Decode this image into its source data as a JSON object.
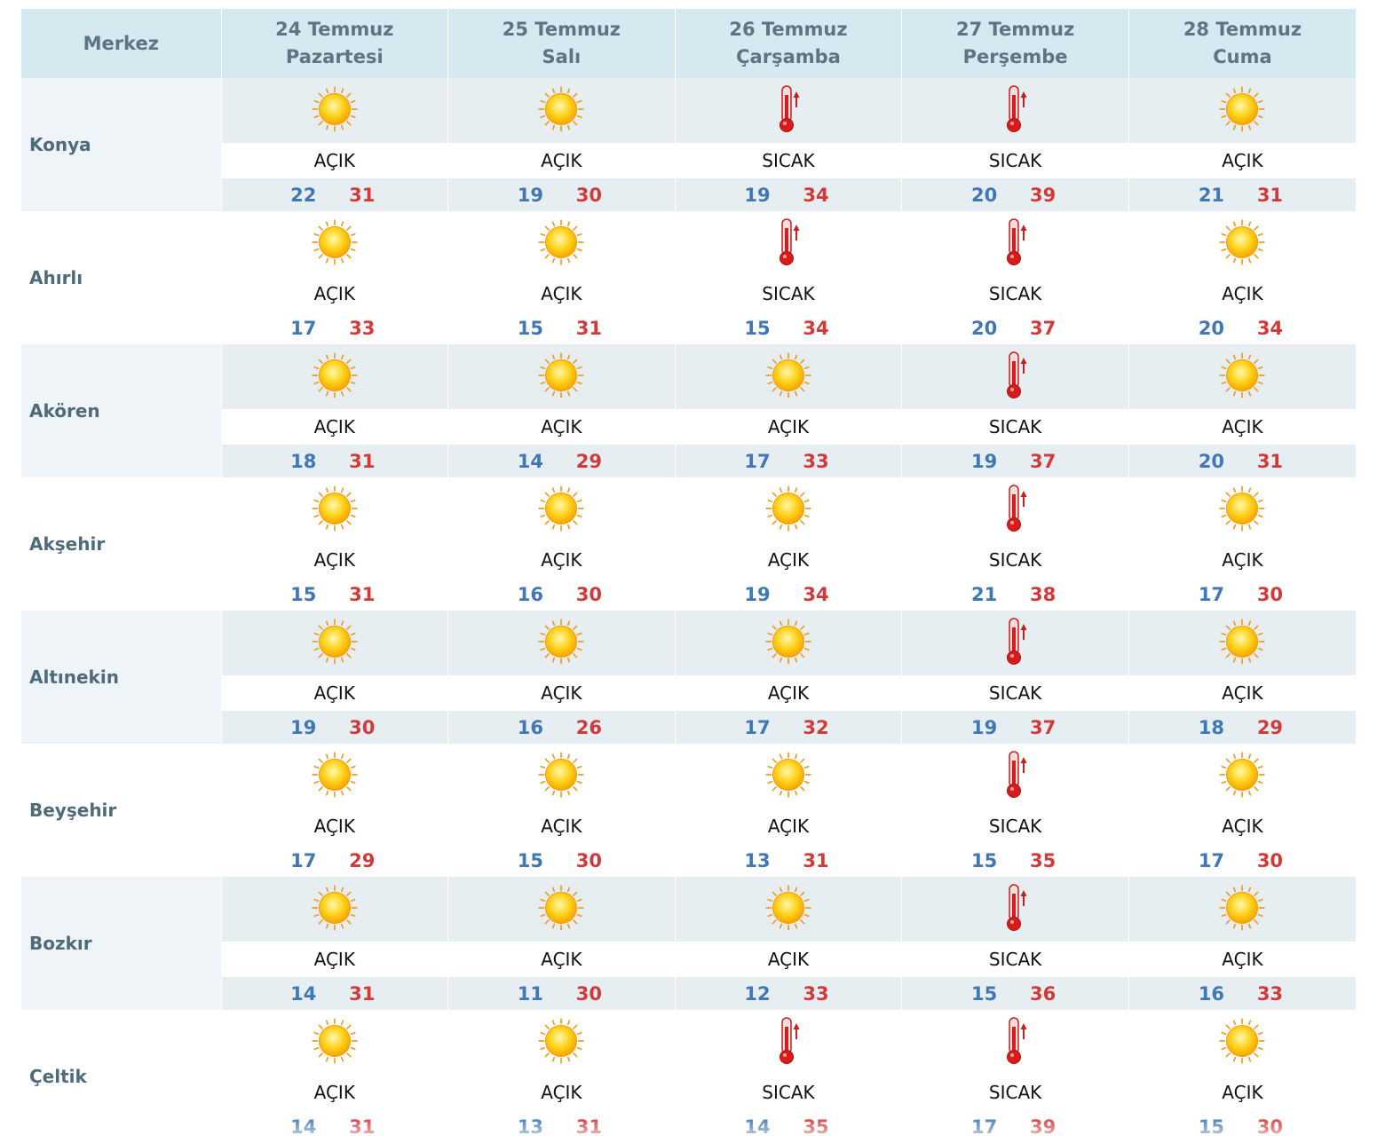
{
  "header": {
    "merkez": "Merkez",
    "days": [
      {
        "date": "24 Temmuz",
        "weekday": "Pazartesi"
      },
      {
        "date": "25 Temmuz",
        "weekday": "Salı"
      },
      {
        "date": "26 Temmuz",
        "weekday": "Çarşamba"
      },
      {
        "date": "27 Temmuz",
        "weekday": "Perşembe"
      },
      {
        "date": "28 Temmuz",
        "weekday": "Cuma"
      }
    ]
  },
  "colors": {
    "low": "#3f78b4",
    "high": "#d23a3a",
    "header_bg": "#d6e9f0"
  },
  "icons": {
    "AÇIK": "sun-icon",
    "SICAK": "thermometer-icon"
  },
  "cities": [
    {
      "name": "Konya",
      "forecast": [
        {
          "cond": "AÇIK",
          "low": "22",
          "high": "31"
        },
        {
          "cond": "AÇIK",
          "low": "19",
          "high": "30"
        },
        {
          "cond": "SICAK",
          "low": "19",
          "high": "34"
        },
        {
          "cond": "SICAK",
          "low": "20",
          "high": "39"
        },
        {
          "cond": "AÇIK",
          "low": "21",
          "high": "31"
        }
      ]
    },
    {
      "name": "Ahırlı",
      "forecast": [
        {
          "cond": "AÇIK",
          "low": "17",
          "high": "33"
        },
        {
          "cond": "AÇIK",
          "low": "15",
          "high": "31"
        },
        {
          "cond": "SICAK",
          "low": "15",
          "high": "34"
        },
        {
          "cond": "SICAK",
          "low": "20",
          "high": "37"
        },
        {
          "cond": "AÇIK",
          "low": "20",
          "high": "34"
        }
      ]
    },
    {
      "name": "Akören",
      "forecast": [
        {
          "cond": "AÇIK",
          "low": "18",
          "high": "31"
        },
        {
          "cond": "AÇIK",
          "low": "14",
          "high": "29"
        },
        {
          "cond": "AÇIK",
          "low": "17",
          "high": "33"
        },
        {
          "cond": "SICAK",
          "low": "19",
          "high": "37"
        },
        {
          "cond": "AÇIK",
          "low": "20",
          "high": "31"
        }
      ]
    },
    {
      "name": "Akşehir",
      "forecast": [
        {
          "cond": "AÇIK",
          "low": "15",
          "high": "31"
        },
        {
          "cond": "AÇIK",
          "low": "16",
          "high": "30"
        },
        {
          "cond": "AÇIK",
          "low": "19",
          "high": "34"
        },
        {
          "cond": "SICAK",
          "low": "21",
          "high": "38"
        },
        {
          "cond": "AÇIK",
          "low": "17",
          "high": "30"
        }
      ]
    },
    {
      "name": "Altınekin",
      "forecast": [
        {
          "cond": "AÇIK",
          "low": "19",
          "high": "30"
        },
        {
          "cond": "AÇIK",
          "low": "16",
          "high": "26"
        },
        {
          "cond": "AÇIK",
          "low": "17",
          "high": "32"
        },
        {
          "cond": "SICAK",
          "low": "19",
          "high": "37"
        },
        {
          "cond": "AÇIK",
          "low": "18",
          "high": "29"
        }
      ]
    },
    {
      "name": "Beyşehir",
      "forecast": [
        {
          "cond": "AÇIK",
          "low": "17",
          "high": "29"
        },
        {
          "cond": "AÇIK",
          "low": "15",
          "high": "30"
        },
        {
          "cond": "AÇIK",
          "low": "13",
          "high": "31"
        },
        {
          "cond": "SICAK",
          "low": "15",
          "high": "35"
        },
        {
          "cond": "AÇIK",
          "low": "17",
          "high": "30"
        }
      ]
    },
    {
      "name": "Bozkır",
      "forecast": [
        {
          "cond": "AÇIK",
          "low": "14",
          "high": "31"
        },
        {
          "cond": "AÇIK",
          "low": "11",
          "high": "30"
        },
        {
          "cond": "AÇIK",
          "low": "12",
          "high": "33"
        },
        {
          "cond": "SICAK",
          "low": "15",
          "high": "36"
        },
        {
          "cond": "AÇIK",
          "low": "16",
          "high": "33"
        }
      ]
    },
    {
      "name": "Çeltik",
      "forecast": [
        {
          "cond": "AÇIK",
          "low": "14",
          "high": "31"
        },
        {
          "cond": "AÇIK",
          "low": "13",
          "high": "31"
        },
        {
          "cond": "SICAK",
          "low": "14",
          "high": "35"
        },
        {
          "cond": "SICAK",
          "low": "17",
          "high": "39"
        },
        {
          "cond": "AÇIK",
          "low": "15",
          "high": "30"
        }
      ]
    }
  ]
}
